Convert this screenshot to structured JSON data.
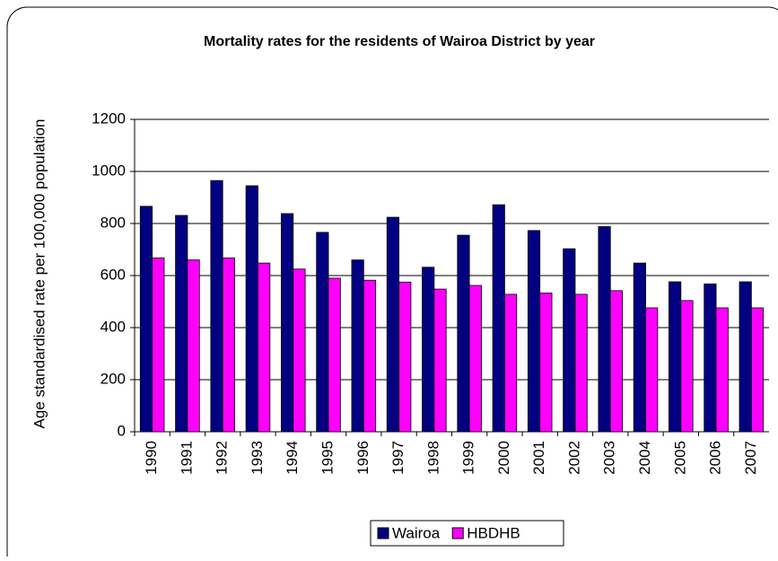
{
  "chart_data": {
    "type": "bar",
    "title": "Mortality rates for the residents of Wairoa District by year",
    "y_label": "Age standardised rate per 100,000 population",
    "categories": [
      "1990",
      "1991",
      "1992",
      "1993",
      "1994",
      "1995",
      "1996",
      "1997",
      "1998",
      "1999",
      "2000",
      "2001",
      "2002",
      "2003",
      "2004",
      "2005",
      "2006",
      "2007"
    ],
    "series": [
      {
        "name": "Wairoa",
        "color": "#000080",
        "values": [
          866,
          831,
          965,
          945,
          838,
          766,
          660,
          824,
          632,
          755,
          872,
          773,
          703,
          788,
          648,
          576,
          568,
          576
        ]
      },
      {
        "name": "HBDHB",
        "color": "#ff00ff",
        "values": [
          668,
          660,
          668,
          648,
          625,
          590,
          582,
          575,
          548,
          562,
          528,
          533,
          528,
          542,
          476,
          504,
          476,
          476
        ]
      }
    ],
    "ylim": [
      0,
      1200
    ],
    "yticks": [
      0,
      200,
      400,
      600,
      800,
      1000,
      1200
    ],
    "grid": true,
    "legend": "bottom"
  }
}
